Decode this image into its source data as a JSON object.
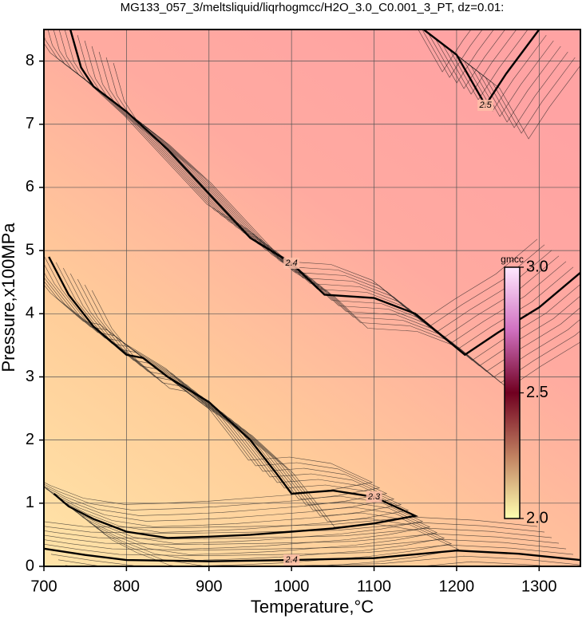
{
  "chart_data": {
    "type": "contour",
    "title": "MG133_057_3/meltsliquid/liqrhogmcc/H2O_3.0_C0.001_3_PT, dz=0.01:",
    "x_label": "Temperature,°C",
    "y_label": "Pressure,x100MPa",
    "xlim": [
      700,
      1350
    ],
    "ylim": [
      0,
      8.5
    ],
    "xticks": [
      700,
      800,
      900,
      1000,
      1100,
      1200,
      1300
    ],
    "yticks": [
      0,
      1,
      2,
      3,
      4,
      5,
      6,
      7,
      8
    ],
    "grid": true,
    "contours": [
      {
        "level": 2.4,
        "x": [
          732,
          745,
          760,
          800,
          850,
          900,
          950,
          1000,
          1040,
          1100,
          1150,
          1210,
          1250,
          1300,
          1350
        ],
        "y": [
          8.5,
          7.9,
          7.6,
          7.2,
          6.6,
          5.9,
          5.2,
          4.8,
          4.3,
          4.25,
          4.0,
          3.35,
          3.7,
          4.1,
          4.65
        ]
      },
      {
        "level": 2.3,
        "x": [
          706,
          730,
          760,
          800,
          820,
          850,
          900,
          950,
          980,
          1000,
          1050,
          1100,
          1150,
          1100,
          1050,
          1000,
          950,
          900,
          850,
          800,
          760,
          730,
          712
        ],
        "y": [
          4.9,
          4.3,
          3.8,
          3.35,
          3.3,
          3.0,
          2.6,
          2.0,
          1.5,
          1.15,
          1.2,
          1.1,
          0.8,
          0.68,
          0.6,
          0.55,
          0.5,
          0.47,
          0.45,
          0.55,
          0.75,
          0.95,
          1.15
        ]
      },
      {
        "level": 2.5,
        "x": [
          1160,
          1200,
          1235,
          1260,
          1300
        ],
        "y": [
          8.5,
          8.1,
          7.3,
          7.8,
          8.5
        ]
      },
      {
        "level": 2.4,
        "x": [
          700,
          750,
          800,
          900,
          1000,
          1100,
          1200,
          1275,
          1350
        ],
        "y": [
          0.28,
          0.18,
          0.1,
          0.08,
          0.1,
          0.13,
          0.25,
          0.2,
          0.1
        ]
      }
    ],
    "colorbar": {
      "label": "gmcc",
      "lim": [
        2,
        3
      ],
      "ticks": [
        {
          "value": 3,
          "label": "3.0"
        },
        2.5,
        {
          "value": 2,
          "label": "2.0"
        }
      ],
      "colors": [
        "#ffffb0",
        "#c08060",
        "#700020",
        "#d070c0",
        "#ffe8ff"
      ]
    }
  }
}
